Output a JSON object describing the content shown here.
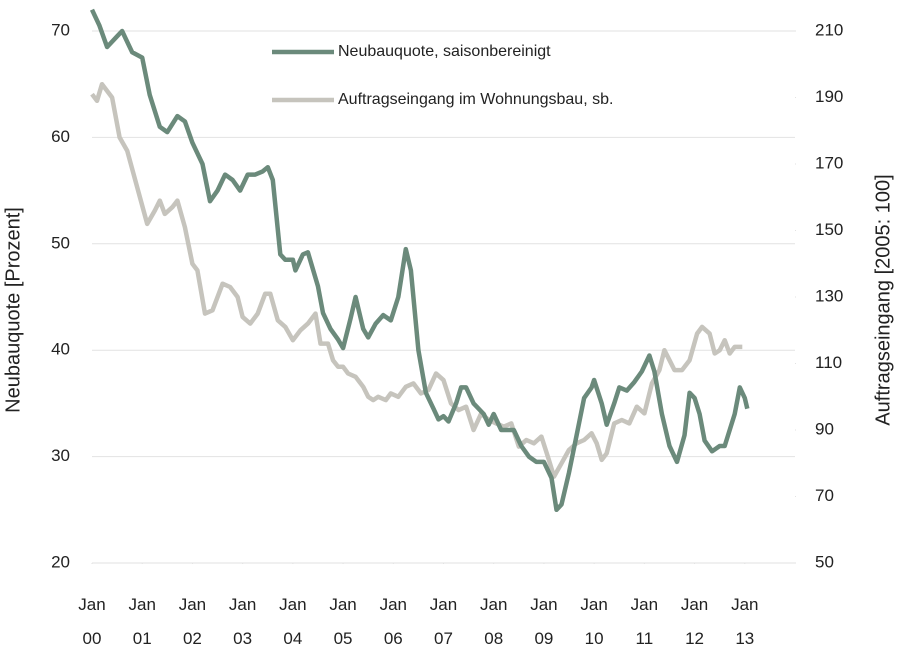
{
  "chart_data": {
    "type": "line",
    "ylabel": "Neubauquote [Prozent]",
    "y2label": "Auftragseingang [2005: 100]",
    "xlim": [
      2000,
      2014
    ],
    "xticks": [
      {
        "value": 2000,
        "label": "Jan\n00"
      },
      {
        "value": 2001,
        "label": "Jan\n01"
      },
      {
        "value": 2002,
        "label": "Jan\n02"
      },
      {
        "value": 2003,
        "label": "Jan\n03"
      },
      {
        "value": 2004,
        "label": "Jan\n04"
      },
      {
        "value": 2005,
        "label": "Jan\n05"
      },
      {
        "value": 2006,
        "label": "Jan\n06"
      },
      {
        "value": 2007,
        "label": "Jan\n07"
      },
      {
        "value": 2008,
        "label": "Jan\n08"
      },
      {
        "value": 2009,
        "label": "Jan\n09"
      },
      {
        "value": 2010,
        "label": "Jan\n10"
      },
      {
        "value": 2011,
        "label": "Jan\n11"
      },
      {
        "value": 2012,
        "label": "Jan\n12"
      },
      {
        "value": 2013,
        "label": "Jan\n13"
      }
    ],
    "ylim": [
      20,
      70
    ],
    "yticks": [
      20,
      30,
      40,
      50,
      60,
      70
    ],
    "y2lim": [
      50,
      210
    ],
    "y2ticks": [
      50,
      70,
      90,
      110,
      130,
      150,
      170,
      190,
      210
    ],
    "grid": true,
    "series": [
      {
        "name": "Neubauquote, saisonbereinigt",
        "color": "#6b8a7b",
        "axis": "y",
        "x": [
          2000.0,
          2000.15,
          2000.3,
          2000.5,
          2000.6,
          2000.8,
          2001.0,
          2001.15,
          2001.35,
          2001.5,
          2001.7,
          2001.85,
          2002.0,
          2002.2,
          2002.35,
          2002.5,
          2002.65,
          2002.8,
          2002.95,
          2003.1,
          2003.25,
          2003.4,
          2003.5,
          2003.6,
          2003.75,
          2003.85,
          2004.0,
          2004.05,
          2004.2,
          2004.3,
          2004.5,
          2004.6,
          2004.75,
          2004.9,
          2005.0,
          2005.15,
          2005.25,
          2005.4,
          2005.5,
          2005.65,
          2005.8,
          2005.95,
          2006.1,
          2006.25,
          2006.35,
          2006.5,
          2006.65,
          2006.8,
          2006.9,
          2007.0,
          2007.1,
          2007.25,
          2007.35,
          2007.45,
          2007.6,
          2007.8,
          2007.9,
          2008.0,
          2008.15,
          2008.3,
          2008.4,
          2008.55,
          2008.7,
          2008.85,
          2009.0,
          2009.15,
          2009.25,
          2009.35,
          2009.5,
          2009.65,
          2009.8,
          2009.95,
          2010.0,
          2010.15,
          2010.25,
          2010.4,
          2010.5,
          2010.65,
          2010.8,
          2010.95,
          2011.1,
          2011.2,
          2011.35,
          2011.5,
          2011.65,
          2011.8,
          2011.9,
          2012.0,
          2012.1,
          2012.2,
          2012.35,
          2012.5,
          2012.6,
          2012.8,
          2012.9,
          2013.0,
          2013.05
        ],
        "values": [
          72,
          70.5,
          68.5,
          69.5,
          70,
          68,
          67.5,
          64,
          61,
          60.5,
          62,
          61.5,
          59.5,
          57.5,
          54,
          55,
          56.5,
          56,
          55,
          56.5,
          56.5,
          56.8,
          57.2,
          56,
          49,
          48.5,
          48.5,
          47.5,
          49,
          49.2,
          46,
          43.5,
          42,
          41,
          40.2,
          43,
          45,
          42,
          41.2,
          42.5,
          43.3,
          42.8,
          45,
          49.5,
          47.5,
          40,
          36,
          34.5,
          33.5,
          33.8,
          33.3,
          35,
          36.5,
          36.5,
          35,
          34,
          33,
          34,
          32.5,
          32.5,
          32.5,
          31,
          30,
          29.5,
          29.5,
          28,
          25,
          25.5,
          28.5,
          32,
          35.5,
          36.5,
          37.2,
          35,
          33,
          35,
          36.5,
          36.2,
          37,
          38,
          39.5,
          38,
          34,
          31,
          29.5,
          32,
          36,
          35.5,
          34,
          31.5,
          30.5,
          31,
          31,
          34,
          36.5,
          35.5,
          34.5
        ]
      },
      {
        "name": "Auftragseingang im Wohnungsbau, sb.",
        "color": "#c6c4bd",
        "axis": "y2",
        "x": [
          2000.0,
          2000.1,
          2000.2,
          2000.4,
          2000.55,
          2000.7,
          2000.9,
          2001.1,
          2001.25,
          2001.35,
          2001.45,
          2001.6,
          2001.7,
          2001.85,
          2002.0,
          2002.1,
          2002.25,
          2002.4,
          2002.6,
          2002.75,
          2002.9,
          2003.0,
          2003.15,
          2003.3,
          2003.45,
          2003.55,
          2003.7,
          2003.85,
          2004.0,
          2004.15,
          2004.3,
          2004.45,
          2004.55,
          2004.7,
          2004.8,
          2004.9,
          2005.0,
          2005.1,
          2005.25,
          2005.4,
          2005.5,
          2005.6,
          2005.7,
          2005.85,
          2005.95,
          2006.1,
          2006.25,
          2006.4,
          2006.55,
          2006.7,
          2006.85,
          2007.0,
          2007.15,
          2007.3,
          2007.45,
          2007.6,
          2007.75,
          2007.9,
          2008.05,
          2008.2,
          2008.35,
          2008.5,
          2008.65,
          2008.8,
          2008.95,
          2009.1,
          2009.2,
          2009.35,
          2009.5,
          2009.65,
          2009.8,
          2009.95,
          2010.05,
          2010.15,
          2010.25,
          2010.4,
          2010.55,
          2010.7,
          2010.85,
          2011.0,
          2011.15,
          2011.3,
          2011.4,
          2011.5,
          2011.6,
          2011.75,
          2011.9,
          2012.05,
          2012.15,
          2012.3,
          2012.4,
          2012.5,
          2012.6,
          2012.7,
          2012.8,
          2012.95
        ],
        "values": [
          191,
          189,
          194,
          190,
          178,
          174,
          163,
          152,
          156,
          159,
          155,
          157,
          159,
          151,
          140,
          138,
          125,
          126,
          134,
          133,
          130,
          124,
          122,
          125,
          131,
          131,
          123,
          121,
          117,
          120,
          122,
          125,
          116,
          116,
          111,
          109,
          109,
          107,
          106,
          103,
          100,
          99,
          100,
          99,
          101,
          100,
          103,
          104,
          101,
          102,
          107,
          105,
          98,
          96,
          97,
          90,
          95,
          93,
          92,
          91,
          92,
          85,
          87,
          86,
          88,
          81,
          76,
          80,
          84,
          86,
          87,
          89,
          86,
          81,
          83,
          92,
          93,
          92,
          97,
          95,
          104,
          108,
          114,
          111,
          108,
          108,
          111,
          119,
          121,
          119,
          113,
          114,
          117,
          113,
          115,
          115
        ]
      }
    ]
  }
}
